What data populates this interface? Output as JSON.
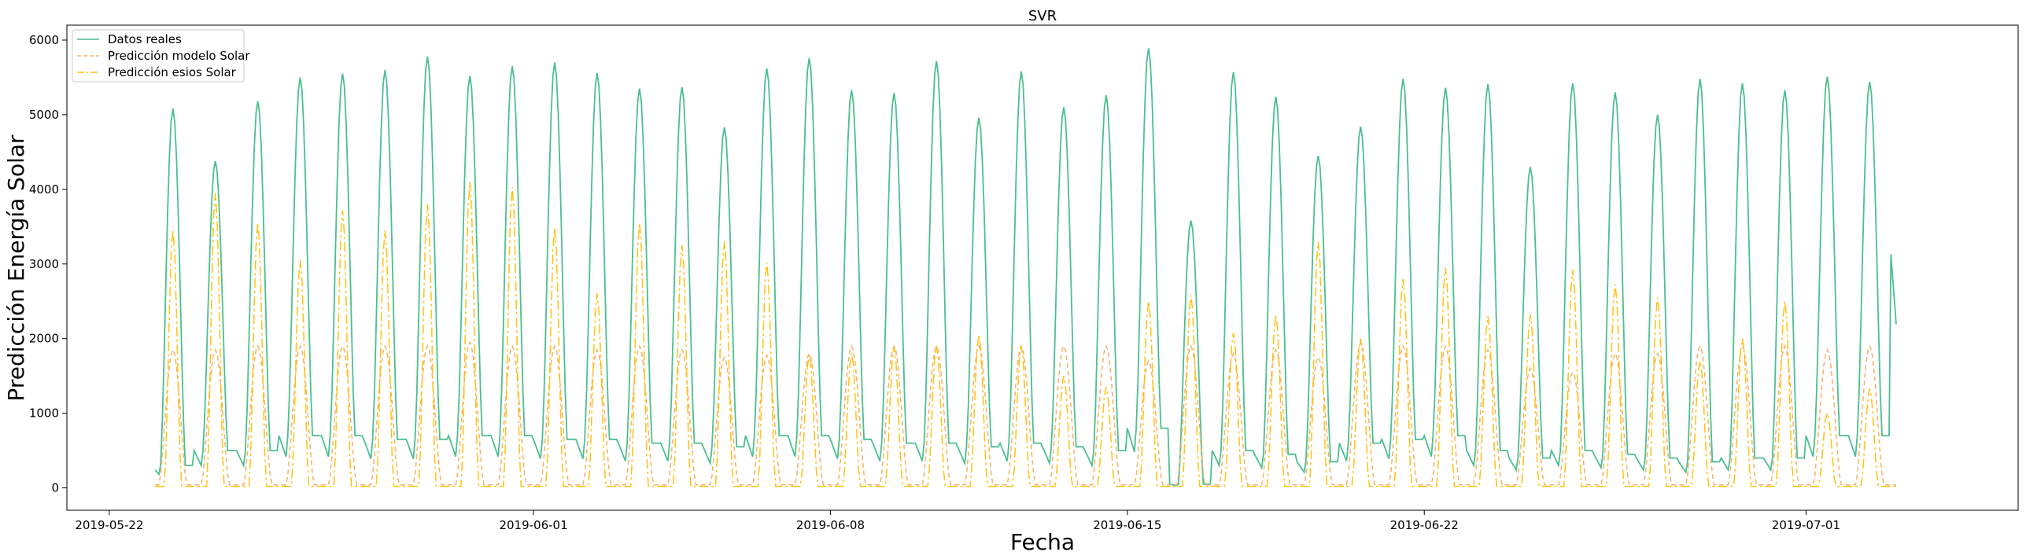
{
  "chart_data": {
    "type": "line",
    "title": "SVR",
    "xlabel": "Fecha",
    "ylabel": "Predicción Energía Solar",
    "x_tick_labels": [
      "2019-05-22",
      "2019-06-01",
      "2019-06-08",
      "2019-06-15",
      "2019-06-22",
      "2019-07-01"
    ],
    "x_range": [
      "2019-05-21",
      "2019-07-06"
    ],
    "y_ticks": [
      0,
      1000,
      2000,
      3000,
      4000,
      5000,
      6000
    ],
    "ylim": [
      -300,
      6200
    ],
    "grid": false,
    "legend_position": "top-left",
    "days": [
      "2019-05-23",
      "2019-05-24",
      "2019-05-25",
      "2019-05-26",
      "2019-05-27",
      "2019-05-28",
      "2019-05-29",
      "2019-05-30",
      "2019-05-31",
      "2019-06-01",
      "2019-06-02",
      "2019-06-03",
      "2019-06-04",
      "2019-06-05",
      "2019-06-06",
      "2019-06-07",
      "2019-06-08",
      "2019-06-09",
      "2019-06-10",
      "2019-06-11",
      "2019-06-12",
      "2019-06-13",
      "2019-06-14",
      "2019-06-15",
      "2019-06-16",
      "2019-06-17",
      "2019-06-18",
      "2019-06-19",
      "2019-06-20",
      "2019-06-21",
      "2019-06-22",
      "2019-06-23",
      "2019-06-24",
      "2019-06-25",
      "2019-06-26",
      "2019-06-27",
      "2019-06-28",
      "2019-06-29",
      "2019-06-30",
      "2019-07-01",
      "2019-07-02",
      "2019-07-03"
    ],
    "series": [
      {
        "name": "Datos reales",
        "color": "#4cbf8f",
        "style": "solid",
        "peaks": [
          5080,
          4380,
          5180,
          5500,
          5550,
          5600,
          5780,
          5520,
          5650,
          5700,
          5560,
          5350,
          5370,
          4830,
          5620,
          5760,
          5330,
          5290,
          5720,
          4960,
          5580,
          5100,
          5260,
          5890,
          3580,
          5570,
          5240,
          4450,
          4840,
          5480,
          5360,
          5410,
          4300,
          5420,
          5300,
          5000,
          5480,
          5420,
          5330,
          5510,
          5440
        ],
        "troughs": [
          300,
          500,
          500,
          700,
          700,
          650,
          650,
          700,
          700,
          650,
          650,
          600,
          600,
          550,
          700,
          700,
          650,
          600,
          600,
          550,
          600,
          550,
          500,
          800,
          50,
          500,
          450,
          350,
          600,
          650,
          700,
          500,
          400,
          500,
          450,
          400,
          350,
          400,
          400,
          700,
          700,
          3130
        ]
      },
      {
        "name": "Predicción modelo Solar",
        "color": "#f2b26b",
        "style": "dashed",
        "peaks": [
          1850,
          1850,
          1900,
          1900,
          1900,
          1900,
          1900,
          1950,
          1900,
          1900,
          1850,
          1900,
          1850,
          1750,
          1780,
          1800,
          1900,
          1900,
          1900,
          1900,
          1900,
          1900,
          1900,
          1700,
          1900,
          1800,
          1850,
          1750,
          1950,
          1900,
          1900,
          1850,
          1600,
          1550,
          1800,
          1800,
          1900,
          1900,
          1900,
          1850,
          1900
        ]
      },
      {
        "name": "Predicción esios Solar",
        "color": "#ffc20e",
        "style": "dashdot",
        "peaks": [
          3450,
          3950,
          3550,
          3050,
          3720,
          3450,
          3800,
          4100,
          4030,
          3480,
          2600,
          3550,
          3250,
          3300,
          3020,
          1780,
          1800,
          1880,
          1900,
          2050,
          1900,
          1500,
          1350,
          2500,
          2580,
          2080,
          2320,
          3300,
          2000,
          2800,
          2950,
          2300,
          2320,
          2920,
          2730,
          2550,
          1700,
          2000,
          2500,
          1000,
          1330
        ]
      }
    ]
  }
}
